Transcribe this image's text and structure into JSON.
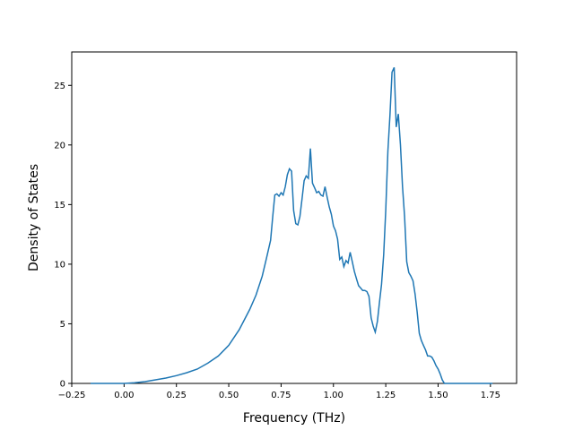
{
  "chart_data": {
    "type": "line",
    "title": "",
    "xlabel": "Frequency (THz)",
    "ylabel": "Density of States",
    "xlim": [
      -0.25,
      1.875
    ],
    "ylim": [
      0,
      27.8
    ],
    "xticks": [
      -0.25,
      0.0,
      0.25,
      0.5,
      0.75,
      1.0,
      1.25,
      1.5,
      1.75
    ],
    "xtick_labels": [
      "−0.25",
      "0.00",
      "0.25",
      "0.50",
      "0.75",
      "1.00",
      "1.25",
      "1.50",
      "1.75"
    ],
    "yticks": [
      0,
      5,
      10,
      15,
      20,
      25
    ],
    "ytick_labels": [
      "0",
      "5",
      "10",
      "15",
      "20",
      "25"
    ],
    "grid": false,
    "line_color": "#1f77b4",
    "series": [
      {
        "x": [
          -0.16,
          -0.05,
          0.0,
          0.05,
          0.1,
          0.15,
          0.2,
          0.25,
          0.3,
          0.35,
          0.4,
          0.45,
          0.5,
          0.55,
          0.6,
          0.63,
          0.66,
          0.68,
          0.7,
          0.71,
          0.72,
          0.73,
          0.74,
          0.75,
          0.76,
          0.77,
          0.78,
          0.79,
          0.8,
          0.81,
          0.82,
          0.83,
          0.84,
          0.85,
          0.86,
          0.87,
          0.88,
          0.89,
          0.9,
          0.91,
          0.92,
          0.93,
          0.94,
          0.95,
          0.96,
          0.97,
          0.98,
          0.99,
          1.0,
          1.01,
          1.02,
          1.03,
          1.04,
          1.05,
          1.06,
          1.07,
          1.08,
          1.09,
          1.1,
          1.11,
          1.12,
          1.13,
          1.14,
          1.15,
          1.16,
          1.17,
          1.18,
          1.19,
          1.2,
          1.21,
          1.22,
          1.23,
          1.24,
          1.25,
          1.26,
          1.27,
          1.28,
          1.29,
          1.3,
          1.31,
          1.32,
          1.33,
          1.34,
          1.35,
          1.36,
          1.37,
          1.38,
          1.39,
          1.4,
          1.41,
          1.42,
          1.43,
          1.44,
          1.45,
          1.46,
          1.47,
          1.48,
          1.49,
          1.5,
          1.51,
          1.52,
          1.53,
          1.54,
          1.55,
          1.56,
          1.57,
          1.58,
          1.59,
          1.6,
          1.61,
          1.62,
          1.7,
          1.76
        ],
        "y": [
          0.0,
          0.0,
          0.0,
          0.05,
          0.15,
          0.3,
          0.45,
          0.65,
          0.9,
          1.2,
          1.7,
          2.3,
          3.2,
          4.5,
          6.2,
          7.4,
          9.0,
          10.5,
          12.0,
          14.0,
          15.8,
          15.9,
          15.7,
          16.0,
          15.8,
          16.5,
          17.5,
          18.0,
          17.8,
          14.5,
          13.4,
          13.3,
          14.0,
          15.5,
          17.0,
          17.4,
          17.2,
          19.7,
          16.8,
          16.4,
          16.0,
          16.1,
          15.8,
          15.7,
          16.5,
          15.6,
          14.8,
          14.2,
          13.2,
          12.8,
          12.1,
          10.4,
          10.6,
          9.8,
          10.3,
          10.1,
          11.0,
          10.2,
          9.4,
          8.8,
          8.2,
          8.0,
          7.8,
          7.8,
          7.7,
          7.3,
          5.5,
          4.8,
          4.3,
          5.2,
          6.8,
          8.3,
          10.8,
          14.5,
          19.5,
          22.5,
          26.1,
          26.5,
          21.5,
          22.6,
          20.0,
          16.5,
          14.0,
          10.2,
          9.3,
          9.0,
          8.6,
          7.5,
          6.0,
          4.2,
          3.6,
          3.2,
          2.8,
          2.3,
          2.3,
          2.2,
          1.9,
          1.5,
          1.2,
          0.8,
          0.3,
          0.0,
          0.0,
          0.0,
          0.0,
          0.0,
          0.0,
          0.0,
          0.0,
          0.0,
          0.0,
          0.0,
          0.0
        ],
        "y_note_dummy": []
      }
    ]
  }
}
